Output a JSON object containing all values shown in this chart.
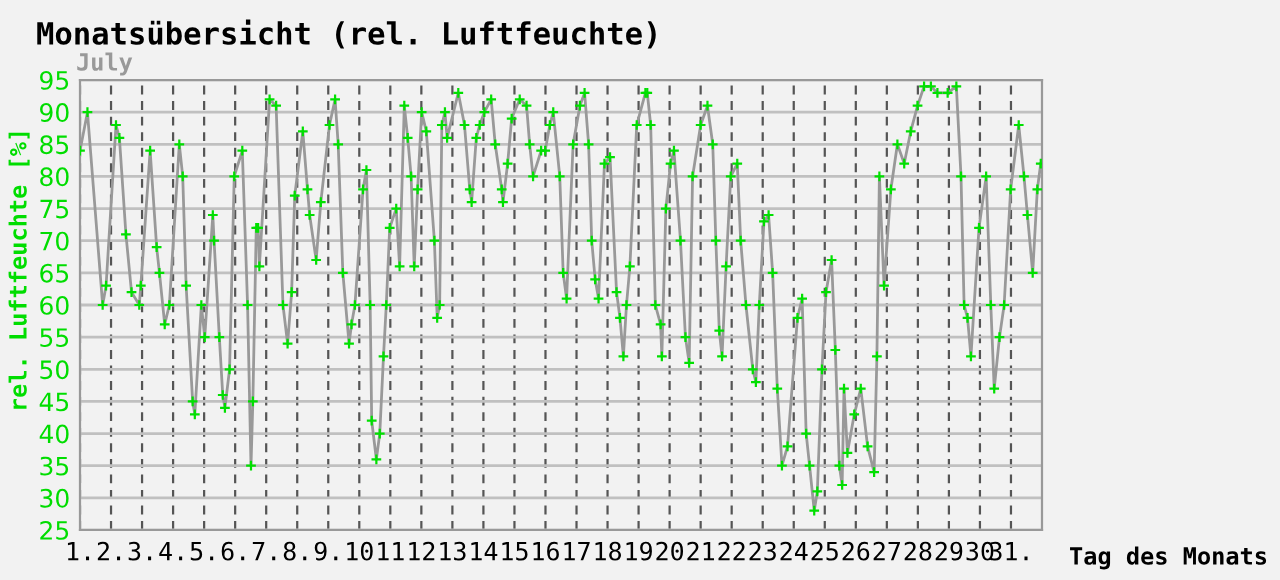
{
  "chart_data": {
    "type": "line",
    "title": "Monatsübersicht (rel. Luftfeuchte)",
    "subtitle": "July",
    "xlabel": "Tag des Monats",
    "ylabel": "rel. Luftfeuchte [%]",
    "xlim": [
      1,
      32
    ],
    "ylim": [
      25,
      95
    ],
    "xticks": [
      {
        "value": 1,
        "label": "1."
      },
      {
        "value": 2,
        "label": "2."
      },
      {
        "value": 3,
        "label": "3."
      },
      {
        "value": 4,
        "label": "4."
      },
      {
        "value": 5,
        "label": "5."
      },
      {
        "value": 6,
        "label": "6."
      },
      {
        "value": 7,
        "label": "7."
      },
      {
        "value": 8,
        "label": "8."
      },
      {
        "value": 9,
        "label": "9."
      },
      10,
      11,
      12,
      13,
      14,
      15,
      16,
      17,
      18,
      19,
      20,
      21,
      22,
      23,
      24,
      25,
      26,
      27,
      28,
      29,
      30,
      {
        "value": 31,
        "label": "31."
      }
    ],
    "yticks": [
      25,
      30,
      35,
      40,
      45,
      50,
      55,
      60,
      65,
      70,
      75,
      80,
      85,
      90,
      95
    ],
    "grid": true,
    "marker": "cross",
    "line_style": "solid",
    "legend": false,
    "series": [
      {
        "color": "#999999",
        "x": [
          1.0,
          1.24,
          1.73,
          1.84,
          2.16,
          2.27,
          2.48,
          2.66,
          2.91,
          2.96,
          3.26,
          3.47,
          3.56,
          3.73,
          3.88,
          4.2,
          4.31,
          4.42,
          4.63,
          4.7,
          4.91,
          5.02,
          5.28,
          5.32,
          5.49,
          5.6,
          5.67,
          5.82,
          5.97,
          6.23,
          6.4,
          6.51,
          6.57,
          6.68,
          6.74,
          6.78,
          7.11,
          7.32,
          7.54,
          7.69,
          7.82,
          7.92,
          8.18,
          8.33,
          8.4,
          8.61,
          8.76,
          9.04,
          9.22,
          9.32,
          9.47,
          9.67,
          9.75,
          9.86,
          10.12,
          10.23,
          10.35,
          10.4,
          10.55,
          10.66,
          10.78,
          10.87,
          10.98,
          11.19,
          11.3,
          11.45,
          11.56,
          11.67,
          11.77,
          11.88,
          12.01,
          12.16,
          12.42,
          12.51,
          12.59,
          12.66,
          12.76,
          12.83,
          13.19,
          13.39,
          13.56,
          13.62,
          13.77,
          13.88,
          14.03,
          14.25,
          14.38,
          14.59,
          14.63,
          14.78,
          14.91,
          15.17,
          15.39,
          15.49,
          15.6,
          15.86,
          15.99,
          16.14,
          16.25,
          16.46,
          16.57,
          16.68,
          16.89,
          17.11,
          17.26,
          17.39,
          17.49,
          17.6,
          17.71,
          17.9,
          18.08,
          18.29,
          18.4,
          18.51,
          18.61,
          18.72,
          18.94,
          19.22,
          19.28,
          19.39,
          19.54,
          19.71,
          19.75,
          19.88,
          20.03,
          20.14,
          20.35,
          20.51,
          20.63,
          20.74,
          21.0,
          21.22,
          21.39,
          21.49,
          21.6,
          21.69,
          21.82,
          21.97,
          22.18,
          22.29,
          22.46,
          22.68,
          22.78,
          22.89,
          23.04,
          23.19,
          23.32,
          23.47,
          23.62,
          23.8,
          24.12,
          24.27,
          24.4,
          24.51,
          24.66,
          24.76,
          24.91,
          25.04,
          25.22,
          25.34,
          25.47,
          25.56,
          25.62,
          25.73,
          25.95,
          26.16,
          26.38,
          26.59,
          26.68,
          26.76,
          26.91,
          27.13,
          27.34,
          27.56,
          27.77,
          27.99,
          28.2,
          28.42,
          28.63,
          28.96,
          29.24,
          29.39,
          29.49,
          29.6,
          29.71,
          29.97,
          30.2,
          30.35,
          30.46,
          30.63,
          30.78,
          30.99,
          31.25,
          31.42,
          31.53,
          31.7,
          31.85,
          31.96
        ],
        "values": [
          84,
          90,
          60,
          63,
          88,
          86,
          71,
          62,
          60,
          63,
          84,
          69,
          65,
          57,
          60,
          85,
          80,
          63,
          45,
          43,
          60,
          55,
          74,
          70,
          55,
          46,
          44,
          50,
          80,
          84,
          60,
          35,
          45,
          72,
          72,
          66,
          92,
          91,
          60,
          54,
          62,
          77,
          87,
          78,
          74,
          67,
          76,
          88,
          92,
          85,
          65,
          54,
          57,
          60,
          78,
          81,
          60,
          42,
          36,
          40,
          52,
          60,
          72,
          75,
          66,
          91,
          86,
          80,
          66,
          78,
          90,
          87,
          70,
          58,
          60,
          88,
          90,
          86,
          93,
          88,
          78,
          76,
          86,
          88,
          90,
          92,
          85,
          78,
          76,
          82,
          89,
          92,
          91,
          85,
          80,
          84,
          84,
          88,
          90,
          80,
          65,
          61,
          85,
          91,
          93,
          85,
          70,
          64,
          61,
          82,
          83,
          62,
          58,
          52,
          60,
          66,
          88,
          93,
          93,
          88,
          60,
          57,
          52,
          75,
          82,
          84,
          70,
          55,
          51,
          80,
          88,
          91,
          85,
          70,
          56,
          52,
          66,
          80,
          82,
          70,
          60,
          50,
          48,
          60,
          73,
          74,
          65,
          47,
          35,
          38,
          58,
          61,
          40,
          35,
          28,
          31,
          50,
          62,
          67,
          53,
          35,
          32,
          47,
          37,
          43,
          47,
          38,
          34,
          52,
          80,
          63,
          78,
          85,
          82,
          87,
          91,
          94,
          94,
          93,
          93,
          94,
          80,
          60,
          58,
          52,
          72,
          80,
          60,
          47,
          55,
          60,
          78,
          88,
          80,
          74,
          65,
          78,
          82
        ]
      }
    ]
  }
}
